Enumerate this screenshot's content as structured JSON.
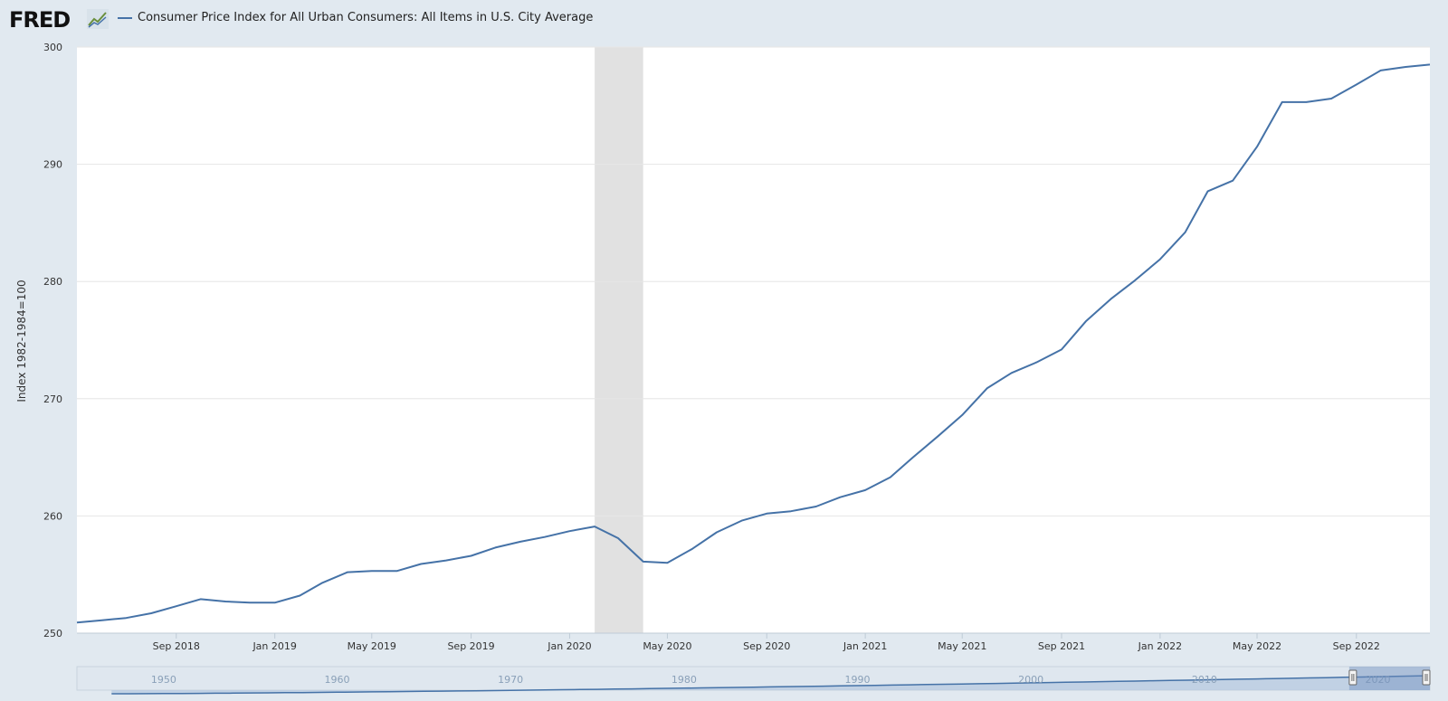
{
  "header": {
    "logo_text": "FRED",
    "logo_icon": "fred-graph-icon"
  },
  "colors": {
    "page_bg": "#e1e9f0",
    "plot_bg": "#ffffff",
    "line": "#4572a7",
    "recession": "#e1e1e1",
    "grid": "#e6e6e6",
    "navigator_fill": "#b4c8e0",
    "navigator_line": "#4572a7"
  },
  "chart_data": {
    "type": "line",
    "title": "",
    "ylabel": "Index 1982-1984=100",
    "ylim": [
      250,
      300
    ],
    "yticks": [
      250,
      260,
      270,
      280,
      290,
      300
    ],
    "grid": true,
    "legend": "top-left",
    "xlim": [
      "2018-05-01",
      "2022-12-01"
    ],
    "xticks": [
      {
        "date": "2018-09-01",
        "label": "Sep 2018"
      },
      {
        "date": "2019-01-01",
        "label": "Jan 2019"
      },
      {
        "date": "2019-05-01",
        "label": "May 2019"
      },
      {
        "date": "2019-09-01",
        "label": "Sep 2019"
      },
      {
        "date": "2020-01-01",
        "label": "Jan 2020"
      },
      {
        "date": "2020-05-01",
        "label": "May 2020"
      },
      {
        "date": "2020-09-01",
        "label": "Sep 2020"
      },
      {
        "date": "2021-01-01",
        "label": "Jan 2021"
      },
      {
        "date": "2021-05-01",
        "label": "May 2021"
      },
      {
        "date": "2021-09-01",
        "label": "Sep 2021"
      },
      {
        "date": "2022-01-01",
        "label": "Jan 2022"
      },
      {
        "date": "2022-05-01",
        "label": "May 2022"
      },
      {
        "date": "2022-09-01",
        "label": "Sep 2022"
      }
    ],
    "recession": {
      "start": "2020-02-01",
      "end": "2020-04-01"
    },
    "series": [
      {
        "name": "Consumer Price Index for All Urban Consumers: All Items in U.S. City Average",
        "x": [
          "2018-05-01",
          "2018-06-01",
          "2018-07-01",
          "2018-08-01",
          "2018-09-01",
          "2018-10-01",
          "2018-11-01",
          "2018-12-01",
          "2019-01-01",
          "2019-02-01",
          "2019-03-01",
          "2019-04-01",
          "2019-05-01",
          "2019-06-01",
          "2019-07-01",
          "2019-08-01",
          "2019-09-01",
          "2019-10-01",
          "2019-11-01",
          "2019-12-01",
          "2020-01-01",
          "2020-02-01",
          "2020-03-01",
          "2020-04-01",
          "2020-05-01",
          "2020-06-01",
          "2020-07-01",
          "2020-08-01",
          "2020-09-01",
          "2020-10-01",
          "2020-11-01",
          "2020-12-01",
          "2021-01-01",
          "2021-02-01",
          "2021-03-01",
          "2021-04-01",
          "2021-05-01",
          "2021-06-01",
          "2021-07-01",
          "2021-08-01",
          "2021-09-01",
          "2021-10-01",
          "2021-11-01",
          "2021-12-01",
          "2022-01-01",
          "2022-02-01",
          "2022-03-01",
          "2022-04-01",
          "2022-05-01",
          "2022-06-01",
          "2022-07-01",
          "2022-08-01",
          "2022-09-01",
          "2022-10-01",
          "2022-11-01",
          "2022-12-01"
        ],
        "values": [
          250.9,
          251.1,
          251.3,
          251.7,
          252.3,
          252.9,
          252.7,
          252.6,
          252.6,
          253.2,
          254.3,
          255.2,
          255.3,
          255.3,
          255.9,
          256.2,
          256.6,
          257.3,
          257.8,
          258.2,
          258.7,
          259.1,
          258.1,
          256.1,
          256.0,
          257.2,
          258.6,
          259.6,
          260.2,
          260.4,
          260.8,
          261.6,
          262.2,
          263.3,
          265.0,
          266.8,
          268.6,
          270.9,
          272.2,
          273.1,
          274.2,
          276.6,
          278.5,
          280.1,
          281.9,
          284.2,
          287.7,
          288.6,
          291.5,
          295.3,
          295.3,
          295.6,
          296.8,
          298.0,
          298.3,
          298.5
        ]
      }
    ],
    "navigator": {
      "tick_labels": [
        "1950",
        "1960",
        "1970",
        "1980",
        "1990",
        "2000",
        "2010",
        "2020"
      ],
      "tick_years": [
        1950,
        1960,
        1970,
        1980,
        1990,
        2000,
        2010,
        2020
      ]
    }
  }
}
